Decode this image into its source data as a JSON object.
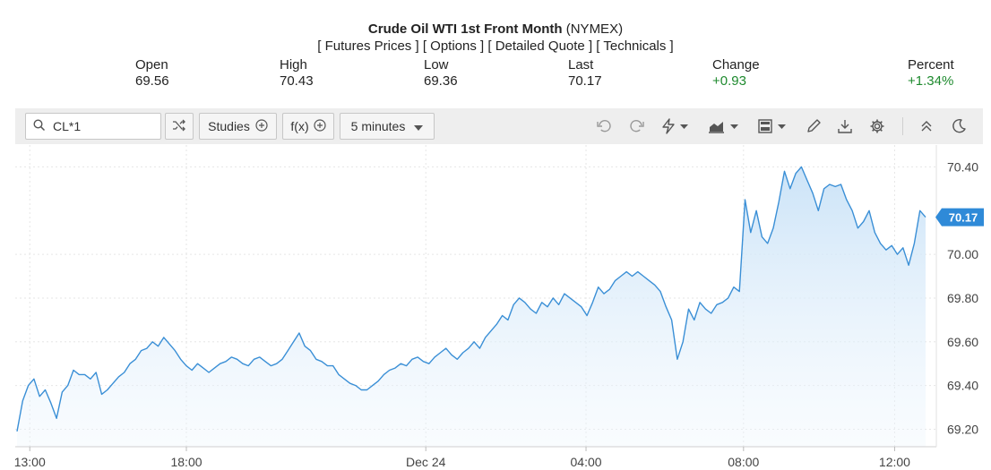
{
  "header": {
    "title_bold": "Crude Oil WTI 1st Front Month",
    "title_exchange": "(NYMEX)",
    "links": [
      "[ Futures Prices ]",
      "[ Options ]",
      "[ Detailed Quote ]",
      "[ Technicals ]"
    ]
  },
  "quote": {
    "open_label": "Open",
    "open_value": "69.56",
    "high_label": "High",
    "high_value": "70.43",
    "low_label": "Low",
    "low_value": "69.36",
    "last_label": "Last",
    "last_value": "70.17",
    "change_label": "Change",
    "change_value": "+0.93",
    "percent_label": "Percent",
    "percent_value": "+1.34%"
  },
  "toolbar": {
    "symbol_value": "CL*1",
    "studies_label": "Studies",
    "fx_label": "f(x)",
    "interval_label": "5 minutes",
    "icons": [
      "search-icon",
      "shuffle-icon",
      "plus-circle-icon",
      "undo-icon",
      "redo-icon",
      "lightning-icon",
      "area-chart-icon",
      "layout-icon",
      "pencil-icon",
      "download-icon",
      "gear-icon",
      "collapse-icon",
      "moon-icon"
    ]
  },
  "colors": {
    "line": "#3a8fd6",
    "fill_top": "#c9e2f7",
    "positive": "#1e8a2e",
    "last_badge": "#2f8ad8"
  },
  "chart_data": {
    "type": "area",
    "title": "",
    "xlabel": "",
    "ylabel": "",
    "x_tick_labels": [
      "13:00",
      "18:00",
      "Dec 24",
      "04:00",
      "08:00",
      "12:00"
    ],
    "y_tick_labels": [
      "69.20",
      "69.40",
      "69.60",
      "69.80",
      "70.00",
      "70.40"
    ],
    "ylim": [
      69.12,
      70.5
    ],
    "grid": true,
    "last_label": "70.17",
    "series": [
      {
        "values": [
          69.19,
          69.33,
          69.4,
          69.43,
          69.35,
          69.38,
          69.32,
          69.25,
          69.37,
          69.4,
          69.47,
          69.45,
          69.45,
          69.43,
          69.46,
          69.36,
          69.38,
          69.41,
          69.44,
          69.46,
          69.5,
          69.52,
          69.56,
          69.57,
          69.6,
          69.58,
          69.62,
          69.59,
          69.56,
          69.52,
          69.49,
          69.47,
          69.5,
          69.48,
          69.46,
          69.48,
          69.5,
          69.51,
          69.53,
          69.52,
          69.5,
          69.49,
          69.52,
          69.53,
          69.51,
          69.49,
          69.5,
          69.52,
          69.56,
          69.6,
          69.64,
          69.58,
          69.56,
          69.52,
          69.51,
          69.49,
          69.49,
          69.45,
          69.43,
          69.41,
          69.4,
          69.38,
          69.38,
          69.4,
          69.42,
          69.45,
          69.47,
          69.48,
          69.5,
          69.49,
          69.52,
          69.53,
          69.51,
          69.5,
          69.53,
          69.55,
          69.57,
          69.54,
          69.52,
          69.55,
          69.57,
          69.6,
          69.57,
          69.62,
          69.65,
          69.68,
          69.72,
          69.7,
          69.77,
          69.8,
          69.78,
          69.75,
          69.73,
          69.78,
          69.76,
          69.8,
          69.77,
          69.82,
          69.8,
          69.78,
          69.76,
          69.72,
          69.78,
          69.85,
          69.82,
          69.84,
          69.88,
          69.9,
          69.92,
          69.9,
          69.92,
          69.9,
          69.88,
          69.86,
          69.83,
          69.76,
          69.7,
          69.52,
          69.6,
          69.75,
          69.7,
          69.78,
          69.75,
          69.73,
          69.77,
          69.78,
          69.8,
          69.85,
          69.83,
          70.25,
          70.1,
          70.2,
          70.08,
          70.05,
          70.12,
          70.24,
          70.38,
          70.3,
          70.37,
          70.4,
          70.34,
          70.28,
          70.2,
          70.3,
          70.32,
          70.31,
          70.32,
          70.25,
          70.2,
          70.12,
          70.15,
          70.2,
          70.1,
          70.05,
          70.02,
          70.04,
          70.0,
          70.03,
          69.95,
          70.05,
          70.2,
          70.17
        ]
      }
    ]
  }
}
